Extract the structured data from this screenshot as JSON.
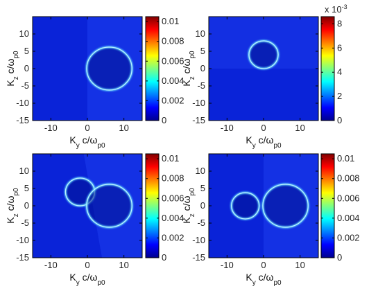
{
  "chart_data": [
    {
      "type": "heatmap",
      "panel": "top-left",
      "xlabel": {
        "main": "K",
        "sub1": "y",
        "mid": " c/ω",
        "sub2": "p0"
      },
      "ylabel": {
        "main": "K",
        "sub1": "z",
        "mid": " c/ω",
        "sub2": "p0"
      },
      "xlim": [
        -15,
        15
      ],
      "ylim": [
        -15,
        15
      ],
      "xticks": [
        {
          "v": -10,
          "label": "-10"
        },
        {
          "v": 0,
          "label": "0"
        },
        {
          "v": 10,
          "label": "10"
        }
      ],
      "yticks": [
        {
          "v": 10,
          "label": "10"
        },
        {
          "v": 5,
          "label": "5"
        },
        {
          "v": 0,
          "label": "0"
        },
        {
          "v": -5,
          "label": "-5"
        },
        {
          "v": -10,
          "label": "-10"
        },
        {
          "v": -15,
          "label": "-15"
        }
      ],
      "colorbar": {
        "min": 0,
        "max": 0.0105,
        "exponent_label": "",
        "ticks": [
          {
            "v": 0.01,
            "label": "0.01"
          },
          {
            "v": 0.008,
            "label": "0.008"
          },
          {
            "v": 0.006,
            "label": "0.006"
          },
          {
            "v": 0.004,
            "label": "0.004"
          },
          {
            "v": 0.002,
            "label": "0.002"
          },
          {
            "v": 0,
            "label": "0"
          }
        ]
      },
      "rings": [
        {
          "cx": 6,
          "cy": 0,
          "r": 6.2
        }
      ]
    },
    {
      "type": "heatmap",
      "panel": "top-right",
      "xlabel": {
        "main": "K",
        "sub1": "y",
        "mid": " c/ω",
        "sub2": "p0"
      },
      "ylabel": {
        "main": "K",
        "sub1": "z",
        "mid": " c/ω",
        "sub2": "p0"
      },
      "xlim": [
        -15,
        15
      ],
      "ylim": [
        -15,
        15
      ],
      "xticks": [
        {
          "v": -10,
          "label": "-10"
        },
        {
          "v": 0,
          "label": "0"
        },
        {
          "v": 10,
          "label": "10"
        }
      ],
      "yticks": [
        {
          "v": 10,
          "label": "10"
        },
        {
          "v": 5,
          "label": "5"
        },
        {
          "v": 0,
          "label": "0"
        },
        {
          "v": -5,
          "label": "-5"
        },
        {
          "v": -10,
          "label": "-10"
        },
        {
          "v": -15,
          "label": "-15"
        }
      ],
      "colorbar": {
        "min": 0,
        "max": 8.6,
        "exponent_label": "x 10",
        "exponent_power": "-3",
        "ticks": [
          {
            "v": 8,
            "label": "8"
          },
          {
            "v": 6,
            "label": "6"
          },
          {
            "v": 4,
            "label": "4"
          },
          {
            "v": 2,
            "label": "2"
          },
          {
            "v": 0,
            "label": "0"
          }
        ]
      },
      "rings": [
        {
          "cx": 0,
          "cy": 4,
          "r": 4
        }
      ]
    },
    {
      "type": "heatmap",
      "panel": "bottom-left",
      "xlabel": {
        "main": "K",
        "sub1": "y",
        "mid": " c/ω",
        "sub2": "p0"
      },
      "ylabel": {
        "main": "K",
        "sub1": "z",
        "mid": " c/ω",
        "sub2": "p0"
      },
      "xlim": [
        -15,
        15
      ],
      "ylim": [
        -15,
        15
      ],
      "xticks": [
        {
          "v": -10,
          "label": "-10"
        },
        {
          "v": 0,
          "label": "0"
        },
        {
          "v": 10,
          "label": "10"
        }
      ],
      "yticks": [
        {
          "v": 10,
          "label": "10"
        },
        {
          "v": 5,
          "label": "5"
        },
        {
          "v": 0,
          "label": "0"
        },
        {
          "v": -5,
          "label": "-5"
        },
        {
          "v": -10,
          "label": "-10"
        },
        {
          "v": -15,
          "label": "-15"
        }
      ],
      "colorbar": {
        "min": 0,
        "max": 0.0105,
        "exponent_label": "",
        "ticks": [
          {
            "v": 0.01,
            "label": "0.01"
          },
          {
            "v": 0.008,
            "label": "0.008"
          },
          {
            "v": 0.006,
            "label": "0.006"
          },
          {
            "v": 0.004,
            "label": "0.004"
          },
          {
            "v": 0.002,
            "label": "0.002"
          },
          {
            "v": 0,
            "label": "0"
          }
        ]
      },
      "rings": [
        {
          "cx": -2,
          "cy": 4,
          "r": 4
        },
        {
          "cx": 6,
          "cy": 0,
          "r": 6.2
        }
      ]
    },
    {
      "type": "heatmap",
      "panel": "bottom-right",
      "xlabel": {
        "main": "K",
        "sub1": "y",
        "mid": " c/ω",
        "sub2": "p0"
      },
      "ylabel": {
        "main": "K",
        "sub1": "z",
        "mid": " c/ω",
        "sub2": "p0"
      },
      "xlim": [
        -15,
        15
      ],
      "ylim": [
        -15,
        15
      ],
      "xticks": [
        {
          "v": -10,
          "label": "-10"
        },
        {
          "v": 0,
          "label": "0"
        },
        {
          "v": 10,
          "label": "10"
        }
      ],
      "yticks": [
        {
          "v": 10,
          "label": "10"
        },
        {
          "v": 5,
          "label": "5"
        },
        {
          "v": 0,
          "label": "0"
        },
        {
          "v": -5,
          "label": "-5"
        },
        {
          "v": -10,
          "label": "-10"
        },
        {
          "v": -15,
          "label": "-15"
        }
      ],
      "colorbar": {
        "min": 0,
        "max": 0.0105,
        "exponent_label": "",
        "ticks": [
          {
            "v": 0.01,
            "label": "0.01"
          },
          {
            "v": 0.008,
            "label": "0.008"
          },
          {
            "v": 0.006,
            "label": "0.006"
          },
          {
            "v": 0.004,
            "label": "0.004"
          },
          {
            "v": 0.002,
            "label": "0.002"
          },
          {
            "v": 0,
            "label": "0"
          }
        ]
      },
      "rings": [
        {
          "cx": -5,
          "cy": 0,
          "r": 3.8
        },
        {
          "cx": 6,
          "cy": 0,
          "r": 6.2
        }
      ]
    }
  ],
  "colors": {
    "background_field": "#0a23d8",
    "ring": "#bdf2ff",
    "axis": "#000000",
    "colormap": [
      "#00008f",
      "#0000ff",
      "#0080ff",
      "#00ffff",
      "#80ff80",
      "#ffff00",
      "#ff8000",
      "#ff0000",
      "#800000"
    ]
  }
}
